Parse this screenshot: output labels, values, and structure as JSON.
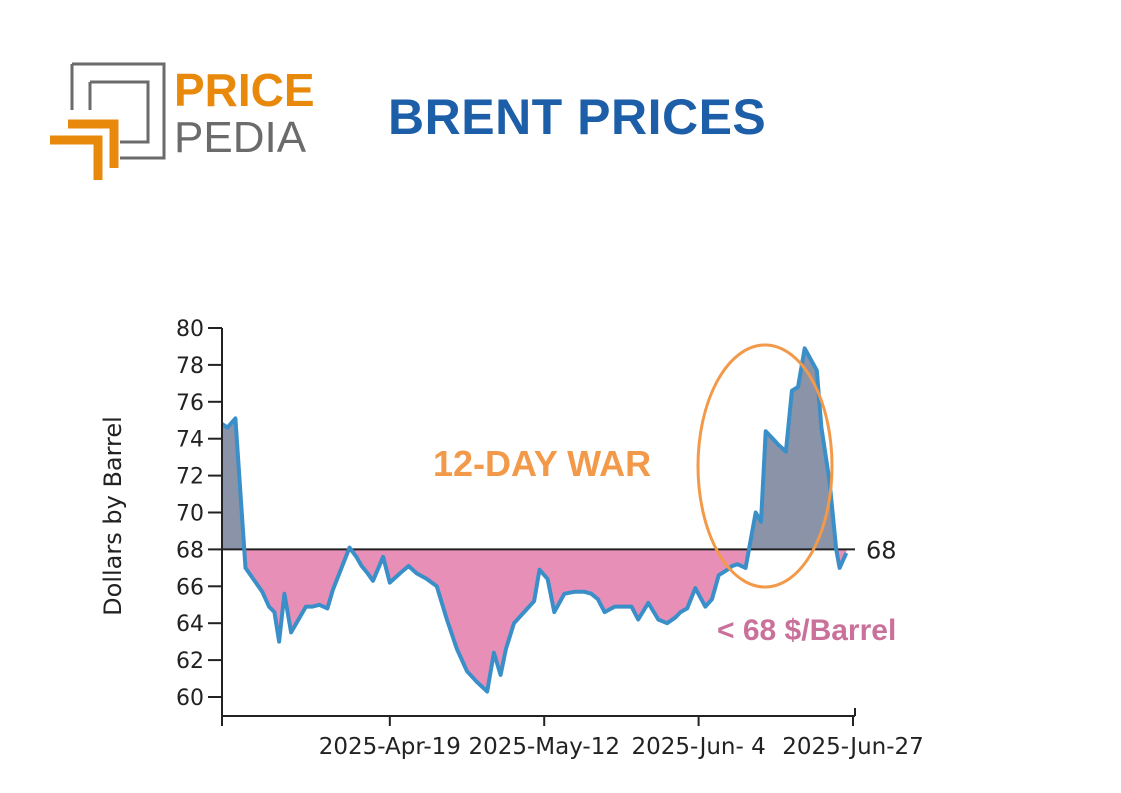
{
  "logo": {
    "line1": "PRICE",
    "line2": "PEDIA"
  },
  "header": {
    "title": "BRENT PRICES"
  },
  "colors": {
    "title": "#1c5fa8",
    "logo_orange": "#e8890c",
    "logo_gray": "#6b6b6b",
    "line": "#3a8fc9",
    "above_fill": "#8a93a8",
    "below_fill": "#e88fb8",
    "war_ellipse": "#f2994a",
    "war_text": "#f2994a",
    "below_text": "#c9719a"
  },
  "annotations": {
    "war_label": "12-DAY WAR",
    "below_label": "< 68 $/Barrel",
    "reference_label": "68"
  },
  "chart_data": {
    "type": "area",
    "title": "BRENT PRICES",
    "ylabel": "Dollars by Barrel",
    "xlabel": "",
    "ylim": [
      59,
      80
    ],
    "yticks": [
      60,
      62,
      64,
      66,
      68,
      70,
      72,
      74,
      76,
      78,
      80
    ],
    "xtick_labels": [
      "2025-Apr-19",
      "2025-May-12",
      "2025-Jun- 4",
      "2025-Jun-27"
    ],
    "xtick_day_positions": [
      25,
      48,
      71,
      94
    ],
    "reference_line": 68,
    "x_start": "2025-Mar-25",
    "x_end": "2025-Jun-29",
    "series": [
      {
        "x": [
          0,
          0.8,
          2,
          3.5,
          6,
          7,
          7.8,
          8.5,
          9.3,
          10.3,
          12.5,
          13.5,
          14.5,
          15.7,
          16.5,
          19,
          20,
          20.8,
          21.7,
          22.5,
          24,
          25,
          26.5,
          27.8,
          29,
          30.5,
          32,
          33.5,
          35,
          36.5,
          38,
          39.5,
          40.5,
          41.5,
          42.3,
          43.5,
          45,
          46.5,
          47.3,
          48.5,
          49.5,
          51,
          52.5,
          54,
          55,
          56,
          57,
          58.5,
          60,
          61,
          62,
          63.5,
          65,
          66.3,
          67.5,
          68.3,
          69.3,
          70.5,
          72,
          73,
          74,
          75.3,
          76,
          76.8,
          78,
          79.5,
          80.3,
          81,
          82.3,
          82.8,
          84,
          84.9,
          85.8,
          86.8,
          88.6,
          89.3,
          90.5,
          91.5,
          92,
          93
        ],
        "values": [
          74.8,
          74.6,
          75.1,
          67,
          65.7,
          64.9,
          64.6,
          63.0,
          65.6,
          63.5,
          64.9,
          64.9,
          65.0,
          64.8,
          65.8,
          68.1,
          67.6,
          67.1,
          66.7,
          66.3,
          67.6,
          66.2,
          66.7,
          67.1,
          66.7,
          66.4,
          66.0,
          64.2,
          62.6,
          61.4,
          60.8,
          60.3,
          62.4,
          61.2,
          62.6,
          64.0,
          64.6,
          65.2,
          66.9,
          66.4,
          64.6,
          65.6,
          65.7,
          65.7,
          65.6,
          65.3,
          64.6,
          64.9,
          64.9,
          64.9,
          64.2,
          65.1,
          64.2,
          64.0,
          64.3,
          64.6,
          64.8,
          65.9,
          64.9,
          65.3,
          66.6,
          66.9,
          67.1,
          67.2,
          67.0,
          70.0,
          69.5,
          74.4,
          73.9,
          73.7,
          73.3,
          76.6,
          76.8,
          78.9,
          77.7,
          74.6,
          71.7,
          68.0,
          67.0,
          67.8
        ]
      }
    ]
  }
}
